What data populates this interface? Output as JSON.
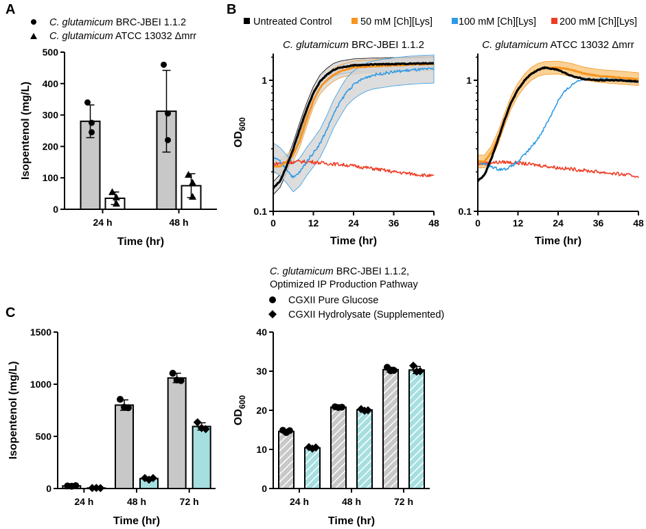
{
  "panel_labels": {
    "a": "A",
    "b": "B",
    "c": "C"
  },
  "chart_data": [
    {
      "id": "A",
      "type": "bar",
      "title": "",
      "categories": [
        "24 h",
        "48 h"
      ],
      "xlabel": "Time (hr)",
      "ylabel": "Isopentenol (mg/L)",
      "ylim": [
        0,
        500
      ],
      "yticks": [
        "0",
        "100",
        "200",
        "300",
        "400",
        "500"
      ],
      "series": [
        {
          "name_prefix": "C. glutamicum",
          "name_suffix": "BRC-JBEI 1.1.2",
          "marker": "circle",
          "fill": "#c8c8c8",
          "values": [
            280,
            312
          ],
          "err": [
            52,
            130
          ],
          "points": [
            [
              340,
              245,
              275
            ],
            [
              460,
              305,
              220
            ]
          ]
        },
        {
          "name_prefix": "C. glutamicum",
          "name_suffix": "ATCC 13032 Δmrr",
          "marker": "triangle",
          "fill": "#ffffff",
          "values": [
            35,
            75
          ],
          "err": [
            20,
            38
          ],
          "points": [
            [
              55,
              38,
              18
            ],
            [
              110,
              85,
              40
            ]
          ]
        }
      ]
    },
    {
      "id": "B1",
      "type": "line",
      "title_prefix": "C. glutamicum",
      "title_suffix": "BRC-JBEI 1.1.2",
      "xlabel": "Time (hr)",
      "ylabel_main": "OD",
      "ylabel_sub": "600",
      "yscale": "log",
      "xlim": [
        0,
        48
      ],
      "ylim": [
        0.1,
        1.6
      ],
      "xticks": [
        "0",
        "12",
        "24",
        "36",
        "48"
      ],
      "yticks": [
        "0.1",
        "1"
      ],
      "series": [
        {
          "name": "Untreated Control",
          "color": "#000000",
          "band": true,
          "x": [
            0,
            2,
            4,
            6,
            8,
            10,
            12,
            14,
            16,
            18,
            20,
            24,
            30,
            36,
            42,
            48
          ],
          "y": [
            0.15,
            0.17,
            0.22,
            0.3,
            0.43,
            0.6,
            0.8,
            0.98,
            1.1,
            1.2,
            1.25,
            1.3,
            1.32,
            1.33,
            1.34,
            1.35
          ]
        },
        {
          "name": "50 mM [Ch][Lys]",
          "color": "#f7941d",
          "band": true,
          "x": [
            0,
            2,
            4,
            6,
            8,
            10,
            12,
            14,
            16,
            18,
            20,
            24,
            30,
            36,
            42,
            48
          ],
          "y": [
            0.22,
            0.22,
            0.24,
            0.27,
            0.35,
            0.5,
            0.7,
            0.88,
            1.0,
            1.1,
            1.17,
            1.25,
            1.28,
            1.3,
            1.32,
            1.33
          ]
        },
        {
          "name": "100 mM [Ch][Lys]",
          "color": "#2e9be6",
          "band": true,
          "x": [
            0,
            2,
            4,
            6,
            8,
            10,
            12,
            14,
            16,
            18,
            20,
            22,
            24,
            26,
            28,
            30,
            36,
            42,
            48
          ],
          "y": [
            0.26,
            0.24,
            0.21,
            0.18,
            0.2,
            0.24,
            0.28,
            0.33,
            0.42,
            0.55,
            0.68,
            0.82,
            0.92,
            1.0,
            1.06,
            1.1,
            1.16,
            1.2,
            1.22
          ]
        },
        {
          "name": "200 mM [Ch][Lys]",
          "color": "#ef3b24",
          "band": false,
          "x": [
            0,
            4,
            8,
            12,
            16,
            20,
            24,
            28,
            32,
            36,
            40,
            44,
            48
          ],
          "y": [
            0.23,
            0.235,
            0.24,
            0.238,
            0.232,
            0.228,
            0.222,
            0.215,
            0.208,
            0.2,
            0.195,
            0.19,
            0.185
          ]
        }
      ]
    },
    {
      "id": "B2",
      "type": "line",
      "title_prefix": "C. glutamicum",
      "title_suffix": "ATCC 13032 Δmrr",
      "xlabel": "Time (hr)",
      "yscale": "log",
      "xlim": [
        0,
        48
      ],
      "ylim": [
        0.1,
        1.6
      ],
      "xticks": [
        "0",
        "12",
        "24",
        "36",
        "48"
      ],
      "yticks": [
        "0.1",
        "1"
      ],
      "series": [
        {
          "name": "Untreated Control",
          "color": "#000000",
          "band": false,
          "x": [
            0,
            2,
            4,
            6,
            8,
            10,
            12,
            14,
            16,
            18,
            20,
            24,
            28,
            32,
            36,
            42,
            48
          ],
          "y": [
            0.17,
            0.19,
            0.25,
            0.35,
            0.5,
            0.68,
            0.85,
            1.0,
            1.12,
            1.2,
            1.25,
            1.2,
            1.08,
            1.02,
            1.0,
            1.0,
            0.98
          ]
        },
        {
          "name": "50 mM [Ch][Lys]",
          "color": "#f7941d",
          "band": true,
          "x": [
            0,
            2,
            4,
            6,
            8,
            10,
            12,
            14,
            16,
            18,
            20,
            24,
            28,
            32,
            36,
            42,
            48
          ],
          "y": [
            0.24,
            0.24,
            0.28,
            0.36,
            0.5,
            0.68,
            0.85,
            1.0,
            1.12,
            1.2,
            1.24,
            1.25,
            1.2,
            1.12,
            1.08,
            1.05,
            1.02
          ]
        },
        {
          "name": "100 mM [Ch][Lys]",
          "color": "#2e9be6",
          "band": false,
          "x": [
            0,
            2,
            4,
            6,
            8,
            10,
            12,
            14,
            16,
            18,
            20,
            22,
            24,
            26,
            28,
            30,
            32,
            36,
            42,
            48
          ],
          "y": [
            0.24,
            0.23,
            0.22,
            0.21,
            0.21,
            0.22,
            0.24,
            0.27,
            0.31,
            0.36,
            0.44,
            0.55,
            0.7,
            0.82,
            0.92,
            1.0,
            1.03,
            1.03,
            1.0,
            0.98
          ]
        },
        {
          "name": "200 mM [Ch][Lys]",
          "color": "#ef3b24",
          "band": false,
          "x": [
            0,
            4,
            8,
            12,
            16,
            20,
            24,
            28,
            32,
            36,
            40,
            44,
            48
          ],
          "y": [
            0.23,
            0.235,
            0.238,
            0.234,
            0.228,
            0.222,
            0.215,
            0.21,
            0.205,
            0.2,
            0.195,
            0.19,
            0.185
          ]
        }
      ]
    },
    {
      "id": "C1",
      "type": "bar",
      "categories": [
        "24 h",
        "48 h",
        "72 h"
      ],
      "xlabel": "Time (hr)",
      "ylabel": "Isopentenol (mg/L)",
      "ylim": [
        0,
        1500
      ],
      "yticks": [
        "0",
        "500",
        "1000",
        "1500"
      ],
      "series": [
        {
          "name": "CGXII Pure Glucose",
          "marker": "circle",
          "fill": "#c8c8c8",
          "hatch": false,
          "values": [
            25,
            800,
            1060
          ],
          "err": [
            5,
            50,
            45
          ],
          "points": [
            [
              25,
              22,
              28
            ],
            [
              855,
              780,
              775
            ],
            [
              1105,
              1040,
              1035
            ]
          ]
        },
        {
          "name": "CGXII Hydrolysate (Supplemented)",
          "marker": "diamond",
          "fill": "#a6dfe0",
          "hatch": false,
          "values": [
            5,
            95,
            595
          ],
          "err": [
            3,
            15,
            35
          ],
          "points": [
            [
              5,
              6,
              4
            ],
            [
              100,
              85,
              100
            ],
            [
              635,
              580,
              570
            ]
          ]
        }
      ]
    },
    {
      "id": "C2",
      "type": "bar",
      "categories": [
        "24 h",
        "48 h",
        "72 h"
      ],
      "xlabel": "Time (hr)",
      "ylabel_main": "OD",
      "ylabel_sub": "600",
      "ylim": [
        0,
        40
      ],
      "yticks": [
        "0",
        "10",
        "20",
        "30",
        "40"
      ],
      "series": [
        {
          "name": "CGXII Pure Glucose",
          "marker": "circle",
          "fill": "#c8c8c8",
          "hatch": true,
          "values": [
            14.6,
            20.8,
            30.4
          ],
          "err": [
            0.5,
            0.3,
            0.6
          ],
          "points": [
            [
              14.9,
              14.3,
              14.8
            ],
            [
              20.9,
              20.7,
              20.8
            ],
            [
              31.0,
              30.1,
              30.2
            ]
          ]
        },
        {
          "name": "CGXII Hydrolysate (Supplemented)",
          "marker": "diamond",
          "fill": "#a6dfe0",
          "hatch": true,
          "values": [
            10.4,
            20.1,
            30.3
          ],
          "err": [
            0.3,
            0.3,
            0.9
          ],
          "points": [
            [
              10.6,
              10.2,
              10.5
            ],
            [
              20.3,
              19.9,
              20.0
            ],
            [
              31.4,
              29.9,
              30.0
            ]
          ]
        }
      ]
    }
  ],
  "legend_c": {
    "title_prefix": "C. glutamicum",
    "title_suffix": "BRC-JBEI 1.1.2,",
    "title_line2": "Optimized IP Production Pathway"
  },
  "colors": {
    "grey_bar": "#c8c8c8",
    "teal_bar": "#a6dfe0",
    "band": "#cfcfcf"
  }
}
